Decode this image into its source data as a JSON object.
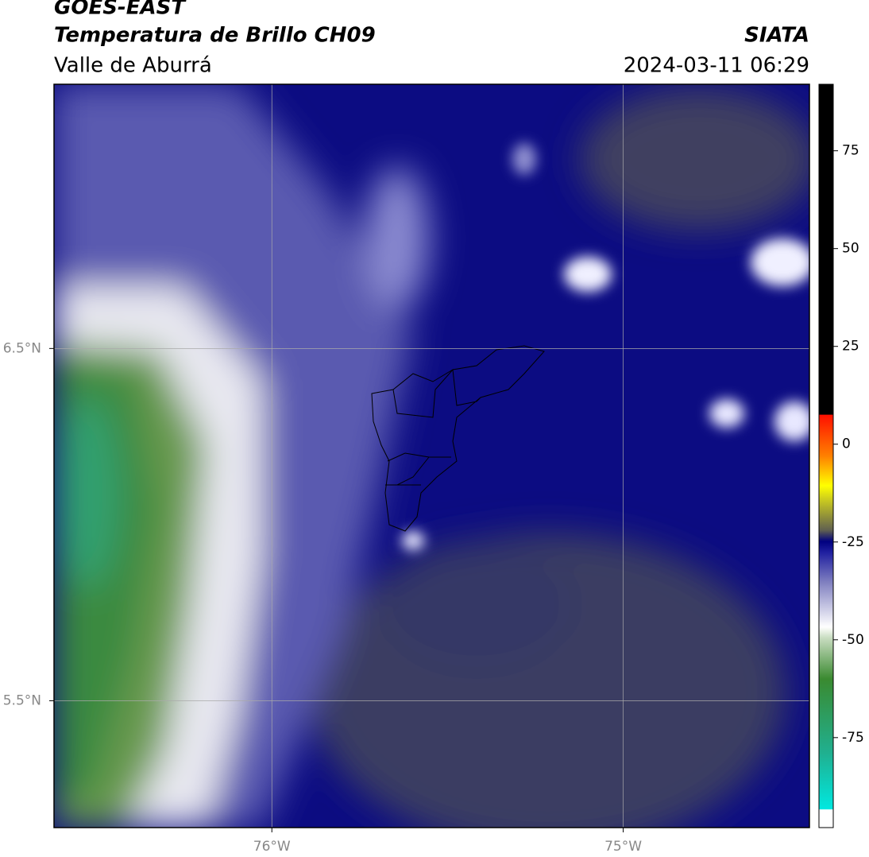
{
  "header": {
    "title": "GOES-EAST",
    "subtitle": "Temperatura de Brillo CH09",
    "region": "Valle de Aburrá",
    "source": "SIATA",
    "timestamp": "2024-03-11 06:29"
  },
  "map": {
    "xlim": [
      -76.62,
      -74.47
    ],
    "ylim": [
      5.14,
      7.25
    ],
    "xticks": [
      {
        "value": -76,
        "label": "76°W"
      },
      {
        "value": -75,
        "label": "75°W"
      }
    ],
    "yticks": [
      {
        "value": 6.5,
        "label": "6.5°N"
      },
      {
        "value": 5.5,
        "label": "5.5°N"
      }
    ],
    "grid": true
  },
  "colorbar": {
    "lim": [
      -98,
      92
    ],
    "ticks": [
      75,
      50,
      25,
      0,
      -25,
      -50,
      -75
    ]
  }
}
